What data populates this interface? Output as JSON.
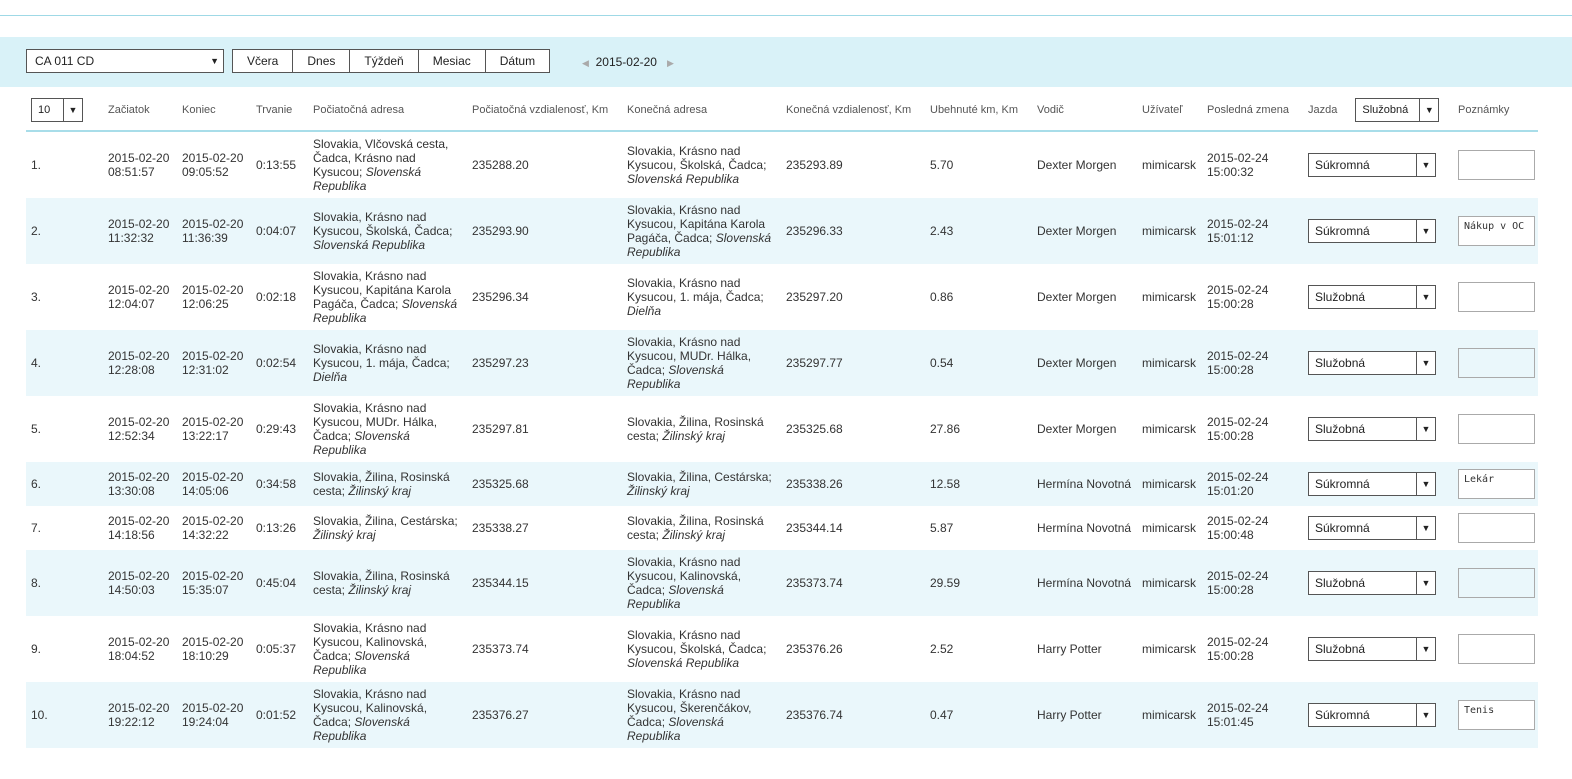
{
  "toolbar": {
    "vehicle": "CA 011 CD",
    "buttons": [
      "Včera",
      "Dnes",
      "Týždeň",
      "Mesiac",
      "Dátum"
    ],
    "date": "2015-02-20"
  },
  "table": {
    "page_size": "10",
    "headers": [
      "Začiatok",
      "Koniec",
      "Trvanie",
      "Počiatočná adresa",
      "Počiatočná vzdialenosť, Km",
      "Konečná adresa",
      "Konečná vzdialenosť, Km",
      "Ubehnuté km, Km",
      "Vodič",
      "Užívateľ",
      "Posledná zmena",
      "Jazda",
      "Poznámky"
    ],
    "jazda_filter": "Služobná",
    "rows": [
      {
        "index": "1.",
        "start": "2015-02-20 08:51:57",
        "end": "2015-02-20 09:05:52",
        "duration": "0:13:55",
        "start_address": {
          "text": "Slovakia, Vlčovská cesta, Čadca, Krásno nad Kysucou;",
          "region": "Slovenská Republika"
        },
        "start_km": "235288.20",
        "end_address": {
          "text": "Slovakia, Krásno nad Kysucou, Školská, Čadca;",
          "region": "Slovenská Republika"
        },
        "end_km": "235293.89",
        "distance": "5.70",
        "driver": "Dexter Morgen",
        "user": "mimicarsk",
        "last_change": "2015-02-24 15:00:32",
        "trip_type": "Súkromná"
      },
      {
        "index": "2.",
        "start": "2015-02-20 11:32:32",
        "end": "2015-02-20 11:36:39",
        "duration": "0:04:07",
        "start_address": {
          "text": "Slovakia, Krásno nad Kysucou, Školská, Čadca;",
          "region": "Slovenská Republika"
        },
        "start_km": "235293.90",
        "end_address": {
          "text": "Slovakia, Krásno nad Kysucou, Kapitána Karola Pagáča, Čadca;",
          "region": "Slovenská Republika"
        },
        "end_km": "235296.33",
        "distance": "2.43",
        "driver": "Dexter Morgen",
        "user": "mimicarsk",
        "last_change": "2015-02-24 15:01:12",
        "trip_type": "Súkromná",
        "note": "Nákup v OC"
      },
      {
        "index": "3.",
        "start": "2015-02-20 12:04:07",
        "end": "2015-02-20 12:06:25",
        "duration": "0:02:18",
        "start_address": {
          "text": "Slovakia, Krásno nad Kysucou, Kapitána Karola Pagáča, Čadca;",
          "region": "Slovenská Republika"
        },
        "start_km": "235296.34",
        "end_address": {
          "text": "Slovakia, Krásno nad Kysucou, 1. mája, Čadca;",
          "region": "Dielňa"
        },
        "end_km": "235297.20",
        "distance": "0.86",
        "driver": "Dexter Morgen",
        "user": "mimicarsk",
        "last_change": "2015-02-24 15:00:28",
        "trip_type": "Služobná"
      },
      {
        "index": "4.",
        "start": "2015-02-20 12:28:08",
        "end": "2015-02-20 12:31:02",
        "duration": "0:02:54",
        "start_address": {
          "text": "Slovakia, Krásno nad Kysucou, 1. mája, Čadca;",
          "region": "Dielňa"
        },
        "start_km": "235297.23",
        "end_address": {
          "text": "Slovakia, Krásno nad Kysucou, MUDr. Hálka, Čadca;",
          "region": "Slovenská Republika"
        },
        "end_km": "235297.77",
        "distance": "0.54",
        "driver": "Dexter Morgen",
        "user": "mimicarsk",
        "last_change": "2015-02-24 15:00:28",
        "trip_type": "Služobná"
      },
      {
        "index": "5.",
        "start": "2015-02-20 12:52:34",
        "end": "2015-02-20 13:22:17",
        "duration": "0:29:43",
        "start_address": {
          "text": "Slovakia, Krásno nad Kysucou, MUDr. Hálka, Čadca;",
          "region": "Slovenská Republika"
        },
        "start_km": "235297.81",
        "end_address": {
          "text": "Slovakia, Žilina, Rosinská cesta;",
          "region": "Žilinský kraj"
        },
        "end_km": "235325.68",
        "distance": "27.86",
        "driver": "Dexter Morgen",
        "user": "mimicarsk",
        "last_change": "2015-02-24 15:00:28",
        "trip_type": "Služobná"
      },
      {
        "index": "6.",
        "start": "2015-02-20 13:30:08",
        "end": "2015-02-20 14:05:06",
        "duration": "0:34:58",
        "start_address": {
          "text": "Slovakia, Žilina, Rosinská cesta;",
          "region": "Žilinský kraj"
        },
        "start_km": "235325.68",
        "end_address": {
          "text": "Slovakia, Žilina, Cestárska;",
          "region": "Žilinský kraj"
        },
        "end_km": "235338.26",
        "distance": "12.58",
        "driver": "Hermína Novotná",
        "user": "mimicarsk",
        "last_change": "2015-02-24 15:01:20",
        "trip_type": "Súkromná",
        "note": "Lekár"
      },
      {
        "index": "7.",
        "start": "2015-02-20 14:18:56",
        "end": "2015-02-20 14:32:22",
        "duration": "0:13:26",
        "start_address": {
          "text": "Slovakia, Žilina, Cestárska;",
          "region": "Žilinský kraj"
        },
        "start_km": "235338.27",
        "end_address": {
          "text": "Slovakia, Žilina, Rosinská cesta;",
          "region": "Žilinský kraj"
        },
        "end_km": "235344.14",
        "distance": "5.87",
        "driver": "Hermína Novotná",
        "user": "mimicarsk",
        "last_change": "2015-02-24 15:00:48",
        "trip_type": "Súkromná"
      },
      {
        "index": "8.",
        "start": "2015-02-20 14:50:03",
        "end": "2015-02-20 15:35:07",
        "duration": "0:45:04",
        "start_address": {
          "text": "Slovakia, Žilina, Rosinská cesta;",
          "region": "Žilinský kraj"
        },
        "start_km": "235344.15",
        "end_address": {
          "text": "Slovakia, Krásno nad Kysucou, Kalinovská, Čadca;",
          "region": "Slovenská Republika"
        },
        "end_km": "235373.74",
        "distance": "29.59",
        "driver": "Hermína Novotná",
        "user": "mimicarsk",
        "last_change": "2015-02-24 15:00:28",
        "trip_type": "Služobná"
      },
      {
        "index": "9.",
        "start": "2015-02-20 18:04:52",
        "end": "2015-02-20 18:10:29",
        "duration": "0:05:37",
        "start_address": {
          "text": "Slovakia, Krásno nad Kysucou, Kalinovská, Čadca;",
          "region": "Slovenská Republika"
        },
        "start_km": "235373.74",
        "end_address": {
          "text": "Slovakia, Krásno nad Kysucou, Školská, Čadca;",
          "region": "Slovenská Republika"
        },
        "end_km": "235376.26",
        "distance": "2.52",
        "driver": "Harry Potter",
        "user": "mimicarsk",
        "last_change": "2015-02-24 15:00:28",
        "trip_type": "Služobná"
      },
      {
        "index": "10.",
        "start": "2015-02-20 19:22:12",
        "end": "2015-02-20 19:24:04",
        "duration": "0:01:52",
        "start_address": {
          "text": "Slovakia, Krásno nad Kysucou, Kalinovská, Čadca;",
          "region": "Slovenská Republika"
        },
        "start_km": "235376.27",
        "end_address": {
          "text": "Slovakia, Krásno nad Kysucou, Škerenčákov, Čadca;",
          "region": "Slovenská Republika"
        },
        "end_km": "235376.74",
        "distance": "0.47",
        "driver": "Harry Potter",
        "user": "mimicarsk",
        "last_change": "2015-02-24 15:01:45",
        "trip_type": "Súkromná",
        "note": "Tenis"
      }
    ]
  }
}
